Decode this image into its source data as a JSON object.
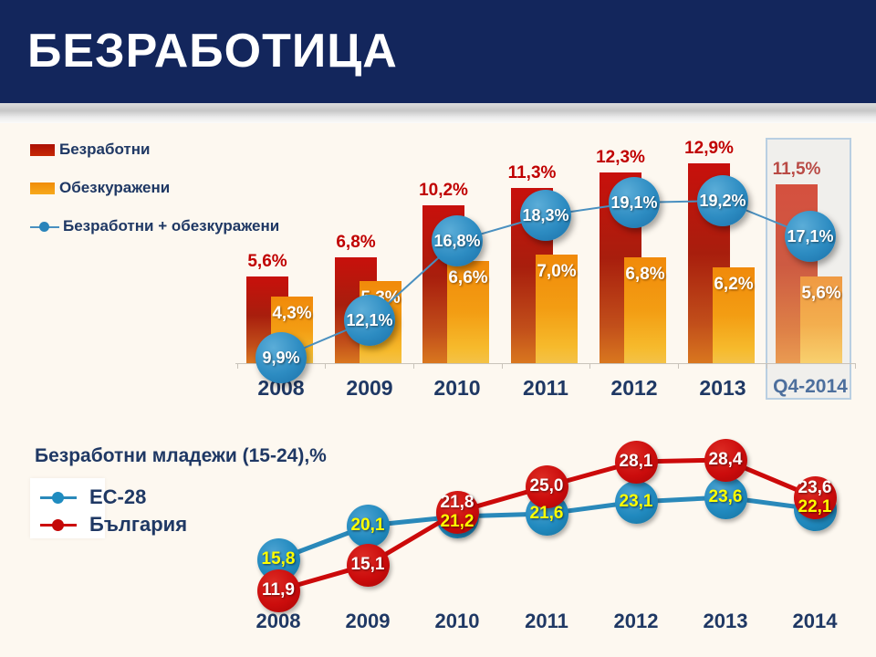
{
  "header": {
    "title": "БЕЗРАБОТИЦА"
  },
  "bottom_chart": {
    "note": "youth unemployment line chart"
  },
  "colors": {
    "header_navy": "#13265c",
    "background_cream": "#fdf8f0",
    "navy_text": "#1f3864",
    "red_bar_label": "#c00000",
    "q4_label_red": "#b94a45",
    "q4_category_text": "#4d6f9d",
    "highlight_box_border": "#b9cfe2",
    "highlight_box_fill": "#f0efec",
    "blue_line_top": "#4a90c0",
    "eu_line_blue": "#2a89ba",
    "bulgaria_line_red": "#cc0a0a",
    "yellow_point_label": "#ffff00"
  },
  "chart_data": [
    {
      "type": "bar",
      "subtype": "grouped bars + line bubbles",
      "categories": [
        "2008",
        "2009",
        "2010",
        "2011",
        "2012",
        "2013",
        "Q4-2014"
      ],
      "series": [
        {
          "name": "Безработни",
          "render": "bar",
          "color": "#c8100c",
          "values": [
            5.6,
            6.8,
            10.2,
            11.3,
            12.3,
            12.9,
            11.5
          ],
          "labels": [
            "5,6%",
            "6,8%",
            "10,2%",
            "11,3%",
            "12,3%",
            "12,9%",
            "11,5%"
          ]
        },
        {
          "name": "Обезкуражени",
          "render": "bar",
          "color": "#f39d13",
          "values": [
            4.3,
            5.3,
            6.6,
            7.0,
            6.8,
            6.2,
            5.6
          ],
          "labels": [
            "4,3%",
            "5,3%",
            "6,6%",
            "7,0%",
            "6,8%",
            "6,2%",
            "5,6%"
          ]
        },
        {
          "name": "Безработни + обезкуражени",
          "render": "line",
          "color": "#4a90c0",
          "values": [
            9.9,
            12.1,
            16.8,
            18.3,
            19.1,
            19.2,
            17.1
          ],
          "labels": [
            "9,9%",
            "12,1%",
            "16,8%",
            "18,3%",
            "19,1%",
            "19,2%",
            "17,1%"
          ]
        }
      ],
      "highlight_category": "Q4-2014",
      "ylim": [
        0,
        14
      ],
      "grid": false,
      "legend_position": "left",
      "title": ""
    },
    {
      "type": "line",
      "title": "Безработни младежи (15-24),%",
      "categories": [
        "2008",
        "2009",
        "2010",
        "2011",
        "2012",
        "2013",
        "2014"
      ],
      "series": [
        {
          "name": "ЕС-28",
          "color": "#2a89ba",
          "label_color": "#ffff00",
          "values": [
            15.8,
            20.1,
            21.2,
            21.6,
            23.1,
            23.6,
            22.1
          ],
          "labels": [
            "15,8",
            "20,1",
            "21,2",
            "21,6",
            "23,1",
            "23,6",
            "22,1"
          ]
        },
        {
          "name": "България",
          "color": "#cc0a0a",
          "label_color": "#ffffff",
          "values": [
            11.9,
            15.1,
            21.8,
            25.0,
            28.1,
            28.4,
            23.6
          ],
          "labels": [
            "11,9",
            "15,1",
            "21,8",
            "25,0",
            "28,1",
            "28,4",
            "23,6"
          ]
        }
      ],
      "ylim": [
        10,
        30
      ],
      "grid": false,
      "legend_position": "left"
    }
  ]
}
